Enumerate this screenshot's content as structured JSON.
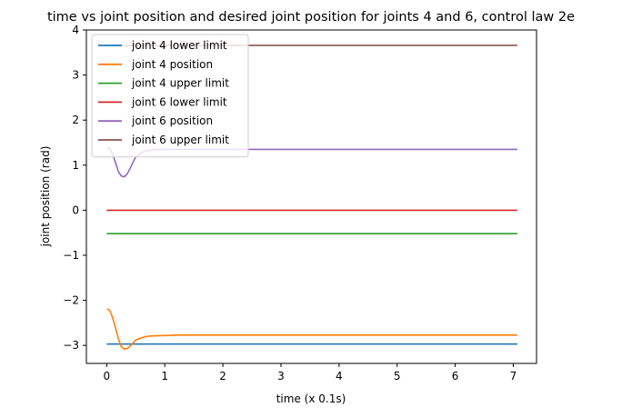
{
  "chart_data": {
    "type": "line",
    "title": "time vs joint position and desired joint position for joints 4 and 6, control law 2e",
    "xlabel": "time (x 0.1s)",
    "ylabel": "joint position (rad)",
    "xlim": [
      -0.35,
      7.4
    ],
    "ylim": [
      -3.4,
      4.0
    ],
    "xticks": [
      0,
      1,
      2,
      3,
      4,
      5,
      6,
      7
    ],
    "xtick_labels": [
      "0",
      "1",
      "2",
      "3",
      "4",
      "5",
      "6",
      "7"
    ],
    "yticks": [
      -3,
      -2,
      -1,
      0,
      1,
      2,
      3,
      4
    ],
    "ytick_labels": [
      "−3",
      "−2",
      "−1",
      "0",
      "1",
      "2",
      "3",
      "4"
    ],
    "grid": false,
    "legend_position": "top-left",
    "series": [
      {
        "name": "joint 4 lower limit",
        "color": "#1f77b4",
        "x": [
          0,
          7.07
        ],
        "y": [
          -2.97,
          -2.97
        ]
      },
      {
        "name": "joint 4 position",
        "color": "#ff7f0e",
        "x": [
          0,
          0.03,
          0.06,
          0.1,
          0.15,
          0.2,
          0.25,
          0.3,
          0.35,
          0.4,
          0.45,
          0.5,
          0.6,
          0.7,
          0.8,
          1.0,
          1.2,
          1.5,
          2.0,
          7.07
        ],
        "y": [
          -2.2,
          -2.2,
          -2.24,
          -2.38,
          -2.6,
          -2.85,
          -3.03,
          -3.08,
          -3.07,
          -3.02,
          -2.95,
          -2.88,
          -2.83,
          -2.8,
          -2.79,
          -2.78,
          -2.77,
          -2.77,
          -2.77,
          -2.77
        ]
      },
      {
        "name": "joint 4 upper limit",
        "color": "#2ca02c",
        "x": [
          0,
          7.07
        ],
        "y": [
          -0.52,
          -0.52
        ]
      },
      {
        "name": "joint 6 lower limit",
        "color": "#d62728",
        "x": [
          0,
          7.07
        ],
        "y": [
          0.0,
          0.0
        ]
      },
      {
        "name": "joint 6 position",
        "color": "#9467bd",
        "x": [
          0,
          0.04,
          0.08,
          0.12,
          0.16,
          0.2,
          0.25,
          0.3,
          0.35,
          0.4,
          0.45,
          0.5,
          0.6,
          0.7,
          0.8,
          1.0,
          1.5,
          7.07
        ],
        "y": [
          1.38,
          1.37,
          1.3,
          1.18,
          1.02,
          0.86,
          0.76,
          0.74,
          0.8,
          0.92,
          1.06,
          1.18,
          1.28,
          1.32,
          1.34,
          1.35,
          1.35,
          1.35
        ]
      },
      {
        "name": "joint 6 upper limit",
        "color": "#8c564b",
        "x": [
          0,
          7.07
        ],
        "y": [
          3.66,
          3.66
        ]
      }
    ]
  }
}
